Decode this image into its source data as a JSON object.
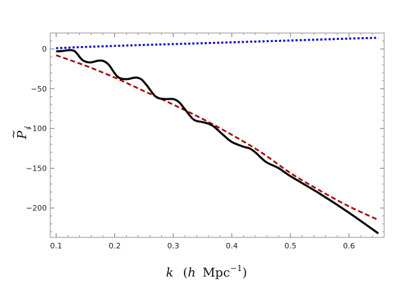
{
  "chart_data": {
    "type": "line",
    "title": "",
    "xlabel_text": "k",
    "xlabel_unit_open": "(",
    "xlabel_unit_h": "h",
    "xlabel_unit_main": "Mpc",
    "xlabel_unit_exp": "−1",
    "xlabel_unit_close": ")",
    "ylabel_text": "P",
    "ylabel_tilde": "~",
    "ylabel_sub": "i",
    "xlim": [
      0.09,
      0.66
    ],
    "ylim": [
      -237,
      20
    ],
    "xticks": [
      0.1,
      0.2,
      0.3,
      0.4,
      0.5,
      0.6
    ],
    "xtick_labels": [
      "0.1",
      "0.2",
      "0.3",
      "0.4",
      "0.5",
      "0.6"
    ],
    "yticks": [
      0,
      -50,
      -100,
      -150,
      -200
    ],
    "ytick_labels": [
      "0",
      "−50",
      "−100",
      "−150",
      "−200"
    ],
    "grid": false,
    "series": [
      {
        "style": "dotted",
        "color": "#0000cc",
        "x": [
          0.1,
          0.15,
          0.2,
          0.25,
          0.3,
          0.35,
          0.4,
          0.45,
          0.5,
          0.55,
          0.6,
          0.65
        ],
        "y": [
          1,
          2.5,
          3.8,
          5,
          6.1,
          7.2,
          8.3,
          9.5,
          10.6,
          11.8,
          13,
          14
        ]
      },
      {
        "style": "dashed",
        "color": "#aa0000",
        "x": [
          0.1,
          0.15,
          0.2,
          0.25,
          0.3,
          0.35,
          0.4,
          0.45,
          0.5,
          0.55,
          0.6,
          0.65
        ],
        "y": [
          -8,
          -21,
          -36,
          -53,
          -70,
          -88,
          -108,
          -130,
          -156,
          -178,
          -198,
          -215
        ]
      },
      {
        "style": "solid",
        "color": "#000000",
        "x": [
          0.1,
          0.112,
          0.122,
          0.132,
          0.145,
          0.158,
          0.17,
          0.18,
          0.19,
          0.205,
          0.22,
          0.235,
          0.245,
          0.255,
          0.27,
          0.285,
          0.3,
          0.31,
          0.32,
          0.335,
          0.35,
          0.36,
          0.37,
          0.385,
          0.4,
          0.42,
          0.43,
          0.44,
          0.45,
          0.46,
          0.48,
          0.5,
          0.55,
          0.6,
          0.65
        ],
        "y": [
          -3,
          -2.5,
          -1.5,
          -3,
          -14,
          -17,
          -15,
          -15,
          -20,
          -35,
          -38,
          -36,
          -38,
          -46,
          -60,
          -63,
          -63,
          -67,
          -76,
          -89,
          -92,
          -94,
          -98,
          -108,
          -117,
          -123,
          -125,
          -130,
          -137,
          -143,
          -150,
          -160,
          -182,
          -206,
          -232
        ]
      }
    ]
  }
}
